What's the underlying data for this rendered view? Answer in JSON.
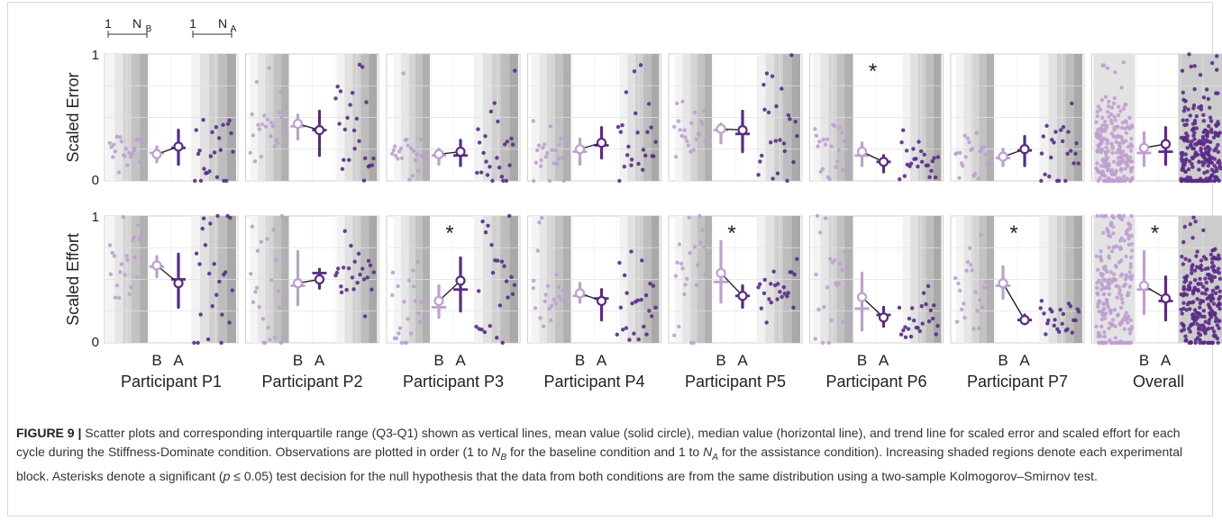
{
  "chart_data": {
    "type": "scatter",
    "description_of_layout": "",
    "x_tick_labels": [
      "B",
      "A"
    ],
    "row_labels": [
      "Scaled Error",
      "Scaled Effort"
    ],
    "y_ticks": [
      "0",
      "1"
    ],
    "ylim": [
      0,
      1
    ],
    "grid": true,
    "header_labels": {
      "one_b": "1",
      "nb": "N",
      "nb_sub": "B",
      "one_a": "1",
      "na": "N",
      "na_sub": "A"
    },
    "colors": {
      "baseline": "#bf9fd0",
      "assistance": "#5b2a86",
      "trend": "#222222"
    },
    "panels": [
      {
        "name": "Participant P1",
        "error": {
          "B": {
            "mean": 0.21,
            "median": 0.22,
            "q1": 0.15,
            "q3": 0.27
          },
          "A": {
            "mean": 0.27,
            "median": 0.26,
            "q1": 0.13,
            "q3": 0.4
          },
          "significant": false
        },
        "effort": {
          "B": {
            "mean": 0.61,
            "median": 0.6,
            "q1": 0.52,
            "q3": 0.68
          },
          "A": {
            "mean": 0.47,
            "median": 0.5,
            "q1": 0.28,
            "q3": 0.7
          },
          "significant": false
        }
      },
      {
        "name": "Participant P2",
        "error": {
          "B": {
            "mean": 0.45,
            "median": 0.43,
            "q1": 0.33,
            "q3": 0.52
          },
          "A": {
            "mean": 0.4,
            "median": 0.4,
            "q1": 0.2,
            "q3": 0.55
          },
          "significant": false
        },
        "effort": {
          "B": {
            "mean": 0.47,
            "median": 0.45,
            "q1": 0.3,
            "q3": 0.72
          },
          "A": {
            "mean": 0.5,
            "median": 0.55,
            "q1": 0.43,
            "q3": 0.58
          },
          "significant": false
        }
      },
      {
        "name": "Participant P3",
        "error": {
          "B": {
            "mean": 0.21,
            "median": 0.2,
            "q1": 0.13,
            "q3": 0.25
          },
          "A": {
            "mean": 0.23,
            "median": 0.2,
            "q1": 0.12,
            "q3": 0.32
          },
          "significant": false
        },
        "effort": {
          "B": {
            "mean": 0.33,
            "median": 0.28,
            "q1": 0.2,
            "q3": 0.45
          },
          "A": {
            "mean": 0.49,
            "median": 0.42,
            "q1": 0.25,
            "q3": 0.67
          },
          "significant": true
        }
      },
      {
        "name": "Participant P4",
        "error": {
          "B": {
            "mean": 0.25,
            "median": 0.23,
            "q1": 0.13,
            "q3": 0.33
          },
          "A": {
            "mean": 0.3,
            "median": 0.28,
            "q1": 0.18,
            "q3": 0.42
          },
          "significant": false
        },
        "effort": {
          "B": {
            "mean": 0.39,
            "median": 0.37,
            "q1": 0.32,
            "q3": 0.47
          },
          "A": {
            "mean": 0.33,
            "median": 0.35,
            "q1": 0.18,
            "q3": 0.42
          },
          "significant": false
        }
      },
      {
        "name": "Participant P5",
        "error": {
          "B": {
            "mean": 0.41,
            "median": 0.4,
            "q1": 0.3,
            "q3": 0.45
          },
          "A": {
            "mean": 0.4,
            "median": 0.37,
            "q1": 0.23,
            "q3": 0.55
          },
          "significant": false
        },
        "effort": {
          "B": {
            "mean": 0.55,
            "median": 0.48,
            "q1": 0.32,
            "q3": 0.8
          },
          "A": {
            "mean": 0.37,
            "median": 0.37,
            "q1": 0.28,
            "q3": 0.45
          },
          "significant": true
        }
      },
      {
        "name": "Participant P6",
        "error": {
          "B": {
            "mean": 0.23,
            "median": 0.2,
            "q1": 0.12,
            "q3": 0.3
          },
          "A": {
            "mean": 0.15,
            "median": 0.15,
            "q1": 0.07,
            "q3": 0.2
          },
          "significant": true
        },
        "effort": {
          "B": {
            "mean": 0.36,
            "median": 0.27,
            "q1": 0.1,
            "q3": 0.55
          },
          "A": {
            "mean": 0.2,
            "median": 0.22,
            "q1": 0.13,
            "q3": 0.28
          },
          "significant": false
        }
      },
      {
        "name": "Participant P7",
        "error": {
          "B": {
            "mean": 0.19,
            "median": 0.18,
            "q1": 0.12,
            "q3": 0.25
          },
          "A": {
            "mean": 0.25,
            "median": 0.24,
            "q1": 0.12,
            "q3": 0.35
          },
          "significant": false
        },
        "effort": {
          "B": {
            "mean": 0.47,
            "median": 0.45,
            "q1": 0.35,
            "q3": 0.6
          },
          "A": {
            "mean": 0.18,
            "median": 0.18,
            "q1": 0.15,
            "q3": 0.22
          },
          "significant": true
        }
      },
      {
        "name": "Overall",
        "error": {
          "B": {
            "mean": 0.26,
            "median": 0.22,
            "q1": 0.12,
            "q3": 0.38
          },
          "A": {
            "mean": 0.29,
            "median": 0.23,
            "q1": 0.13,
            "q3": 0.42
          },
          "significant": false
        },
        "effort": {
          "B": {
            "mean": 0.45,
            "median": 0.42,
            "q1": 0.23,
            "q3": 0.72
          },
          "A": {
            "mean": 0.35,
            "median": 0.33,
            "q1": 0.18,
            "q3": 0.52
          },
          "significant": true
        }
      }
    ]
  },
  "caption": {
    "label": "FIGURE 9 |",
    "part1": " Scatter plots and corresponding interquartile range (Q3-Q1) shown as vertical lines, mean value (solid circle), median value (horizontal line), and trend line for scaled error and scaled effort for each cycle during the Stiffness-Dominate condition. Observations are plotted in order (1 to ",
    "nb": "N",
    "nb_sub": "B",
    "part2": " for the baseline condition and 1 to ",
    "na": "N",
    "na_sub": "A",
    "part3": " for the assistance condition). Increasing shaded regions denote each experimental block. Asterisks denote a significant (",
    "p": "p",
    "part4": " ≤ 0.05) test decision for the null hypothesis that the data from both conditions are from the same distribution using a two-sample Kolmogorov–Smirnov test."
  }
}
